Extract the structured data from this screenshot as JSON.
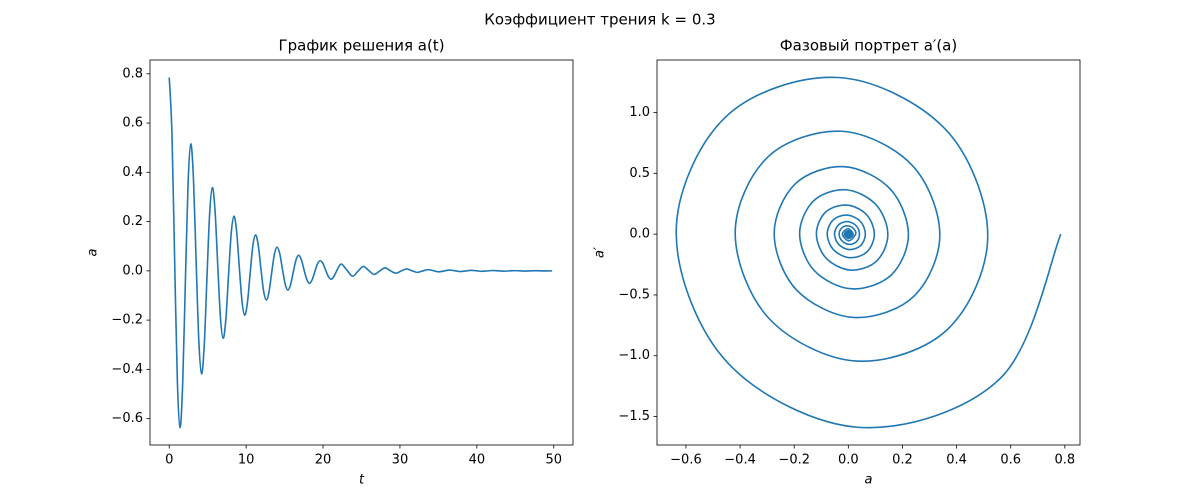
{
  "suptitle": "Коэффициент трения k = 0.3",
  "chart_data": [
    {
      "type": "line",
      "title": "График решения a(t)",
      "x_label": "t",
      "y_label": "a",
      "color": "#1f77b4",
      "xlim": [
        -2.5,
        52.5
      ],
      "ylim": [
        -0.707,
        0.856
      ],
      "xticks": [
        0,
        10,
        20,
        30,
        40,
        50
      ],
      "yticks": [
        {
          "value": -0.6,
          "label": "−0.6"
        },
        {
          "value": -0.4,
          "label": "−0.4"
        },
        {
          "value": -0.2,
          "label": "−0.2"
        },
        {
          "value": 0,
          "label": "0.0"
        },
        0.2,
        0.4,
        0.6,
        0.8
      ],
      "x": [
        0,
        0.351,
        0.701,
        1.052,
        1.403,
        1.753,
        2.104,
        2.454,
        2.805,
        3.156,
        3.506,
        3.857,
        4.208,
        4.558,
        4.909,
        5.259,
        5.61,
        5.961,
        6.311,
        6.662,
        7.013,
        7.363,
        7.714,
        8.064,
        8.415,
        8.766,
        9.116,
        9.467,
        9.818,
        10.168,
        10.519,
        10.869,
        11.22,
        11.571,
        11.921,
        12.272,
        12.623,
        12.973,
        13.324,
        13.674,
        14.025,
        14.376,
        14.726,
        15.077,
        15.428,
        15.778,
        16.129,
        16.479,
        16.83,
        17.181,
        17.531,
        17.882,
        18.233,
        18.583,
        18.934,
        19.284,
        19.635,
        19.986,
        20.336,
        20.687,
        21.038,
        21.388,
        21.739,
        22.089,
        22.44,
        23.141,
        23.843,
        24.544,
        25.245,
        25.946,
        26.648,
        27.349,
        28.05,
        28.751,
        29.453,
        30.154,
        30.855,
        31.556,
        32.258,
        32.959,
        33.66,
        34.361,
        35.063,
        35.764,
        36.465,
        37.166,
        37.868,
        38.569,
        39.27,
        39.971,
        40.673,
        41.374,
        42.075,
        42.776,
        43.478,
        44.179,
        44.88,
        45.581,
        46.283,
        46.984,
        47.685,
        48.386,
        49.088,
        49.789
      ],
      "values": [
        0.785,
        0.562,
        0.047,
        -0.442,
        -0.636,
        -0.455,
        -0.038,
        0.358,
        0.515,
        0.369,
        0.031,
        -0.29,
        -0.418,
        -0.299,
        -0.025,
        0.235,
        0.338,
        0.242,
        0.02,
        -0.191,
        -0.274,
        -0.196,
        -0.016,
        0.154,
        0.222,
        0.159,
        0.013,
        -0.125,
        -0.18,
        -0.129,
        -0.011,
        0.101,
        0.146,
        0.105,
        0.009,
        -0.082,
        -0.118,
        -0.085,
        -0.007,
        0.067,
        0.096,
        0.069,
        0.006,
        -0.054,
        -0.078,
        -0.056,
        -0.005,
        0.044,
        0.063,
        0.045,
        0.004,
        -0.035,
        -0.051,
        -0.036,
        -0.003,
        0.029,
        0.041,
        0.03,
        0.003,
        -0.023,
        -0.034,
        -0.024,
        -0.002,
        0.019,
        0.0271,
        0.0016,
        -0.0219,
        -0.0013,
        0.0178,
        0.0011,
        -0.0144,
        -0.0009,
        0.0117,
        0.0007,
        -0.0095,
        -0.0006,
        0.0077,
        0.0005,
        -0.0062,
        -0.0004,
        0.005,
        0.0003,
        -0.0041,
        -0.0002,
        0.0033,
        0.0002,
        -0.0027,
        -0.0002,
        0.0022,
        0.0001,
        -0.0018,
        -0.0001,
        0.0014,
        0.0001,
        -0.0012,
        -0.0001,
        0.0009,
        0,
        -0.0008,
        0,
        0.0006,
        0,
        -0.0005,
        0
      ]
    },
    {
      "type": "line",
      "title": "Фазовый портрет a′(a)",
      "x_label": "a",
      "y_label": "a′",
      "color": "#1f77b4",
      "xlim": [
        -0.707,
        0.856
      ],
      "ylim": [
        -1.734,
        1.432
      ],
      "xticks": [
        {
          "value": -0.6,
          "label": "−0.6"
        },
        {
          "value": -0.4,
          "label": "−0.4"
        },
        {
          "value": -0.2,
          "label": "−0.2"
        },
        {
          "value": 0,
          "label": "0.0"
        },
        0.2,
        0.4,
        0.6,
        0.8
      ],
      "yticks": [
        {
          "value": -1.5,
          "label": "−1.5"
        },
        {
          "value": -1,
          "label": "−1.0"
        },
        {
          "value": -0.5,
          "label": "−0.5"
        },
        {
          "value": 0,
          "label": "0.0"
        },
        0.5,
        {
          "value": 1,
          "label": "1.0"
        }
      ],
      "x": [
        0.785,
        0.562,
        0.047,
        -0.442,
        -0.636,
        -0.455,
        -0.038,
        0.358,
        0.515,
        0.369,
        0.031,
        -0.29,
        -0.418,
        -0.299,
        -0.025,
        0.235,
        0.338,
        0.242,
        0.02,
        -0.191,
        -0.274,
        -0.196,
        -0.016,
        0.154,
        0.222,
        0.159,
        0.013,
        -0.125,
        -0.18,
        -0.129,
        -0.011,
        0.101,
        0.146,
        0.105,
        0.009,
        -0.082,
        -0.118,
        -0.085,
        -0.007,
        0.067,
        0.096,
        0.069,
        0.006,
        -0.054,
        -0.078,
        -0.056,
        -0.005,
        0.044,
        0.063,
        0.045,
        0.004,
        -0.035,
        -0.051,
        -0.036,
        -0.003,
        0.029,
        0.041,
        0.03,
        0.003,
        -0.023,
        -0.034,
        -0.024,
        -0.002,
        0.019,
        0.0271,
        0.0016,
        -0.0219,
        -0.0013,
        0.0178,
        0.0011,
        -0.0144,
        -0.0009,
        0.0117,
        0.0007,
        -0.0095,
        -0.0006,
        0.0077,
        0.0005,
        -0.0062,
        -0.0004,
        0.005,
        0.0003,
        -0.0041,
        -0.0002,
        0.0033,
        0.0002,
        -0.0027,
        -0.0002,
        0.0022,
        0.0001,
        -0.0018,
        -0.0001,
        0.0014,
        0.0001,
        -0.0012,
        -0.0001,
        0.0009,
        0,
        -0.0008,
        0,
        0.0006,
        0,
        -0.0005,
        0
      ],
      "values": [
        0,
        -1.185,
        -1.59,
        -1.067,
        0,
        0.96,
        1.288,
        0.864,
        0,
        -0.778,
        -1.044,
        -0.701,
        0,
        0.631,
        0.846,
        0.568,
        0,
        -0.511,
        -0.685,
        -0.46,
        0,
        0.414,
        0.555,
        0.373,
        0,
        -0.335,
        -0.45,
        -0.302,
        0,
        0.272,
        0.365,
        0.245,
        0,
        -0.22,
        -0.296,
        -0.198,
        0,
        0.179,
        0.239,
        0.161,
        0,
        -0.145,
        -0.194,
        -0.13,
        0,
        0.117,
        0.157,
        0.106,
        0,
        -0.095,
        -0.127,
        -0.086,
        0,
        0.077,
        0.103,
        0.069,
        0,
        -0.062,
        -0.084,
        -0.056,
        0,
        0.051,
        0.068,
        0.046,
        0,
        -0.0549,
        0,
        0.0444,
        0,
        -0.036,
        0,
        0.0292,
        0,
        -0.0237,
        0,
        0.0192,
        0,
        -0.0155,
        0,
        0.0126,
        0,
        -0.0102,
        0,
        0.0083,
        0,
        -0.0067,
        0,
        0.0054,
        0,
        -0.0044,
        0,
        0.0036,
        0,
        -0.0029,
        0,
        0.0023,
        0,
        -0.0019,
        0,
        0.0015,
        0,
        -0.0012,
        0,
        0.001
      ]
    }
  ]
}
